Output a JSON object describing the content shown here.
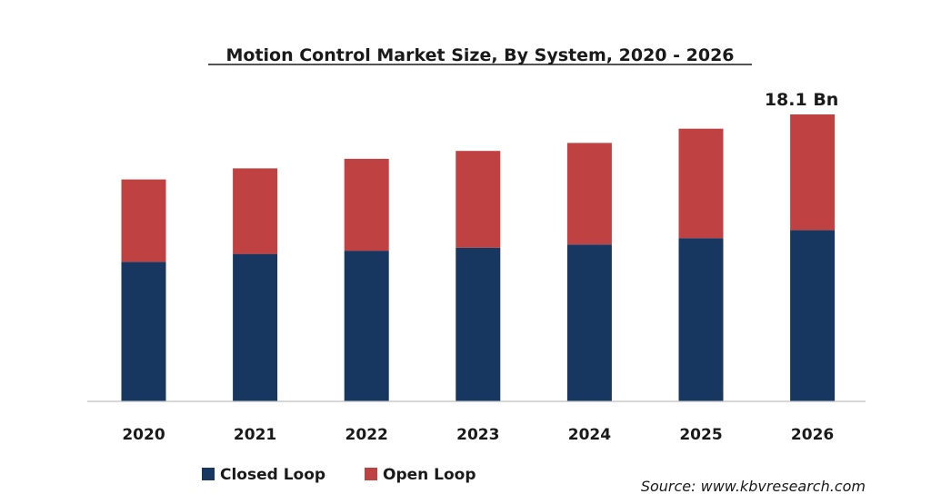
{
  "colors": {
    "closed_loop": "#173761",
    "open_loop": "#bf4141",
    "axis": "#bfbfbf"
  },
  "chart_data": {
    "type": "bar",
    "stacked": true,
    "title": "Motion Control Market Size, By System, 2020 - 2026",
    "categories": [
      "2020",
      "2021",
      "2022",
      "2023",
      "2024",
      "2025",
      "2026"
    ],
    "series": [
      {
        "name": "Closed Loop",
        "color": "#173761",
        "values": [
          8.8,
          9.3,
          9.5,
          9.7,
          9.9,
          10.3,
          10.8
        ]
      },
      {
        "name": "Open Loop",
        "color": "#bf4141",
        "values": [
          5.2,
          5.4,
          5.8,
          6.1,
          6.4,
          6.9,
          7.3
        ]
      }
    ],
    "annotation": {
      "category": "2026",
      "text": "18.1 Bn"
    },
    "ylim": [
      0,
      18.1
    ],
    "grid": false,
    "legend_position": "bottom-left",
    "source": "Source: www.kbvresearch.com"
  }
}
